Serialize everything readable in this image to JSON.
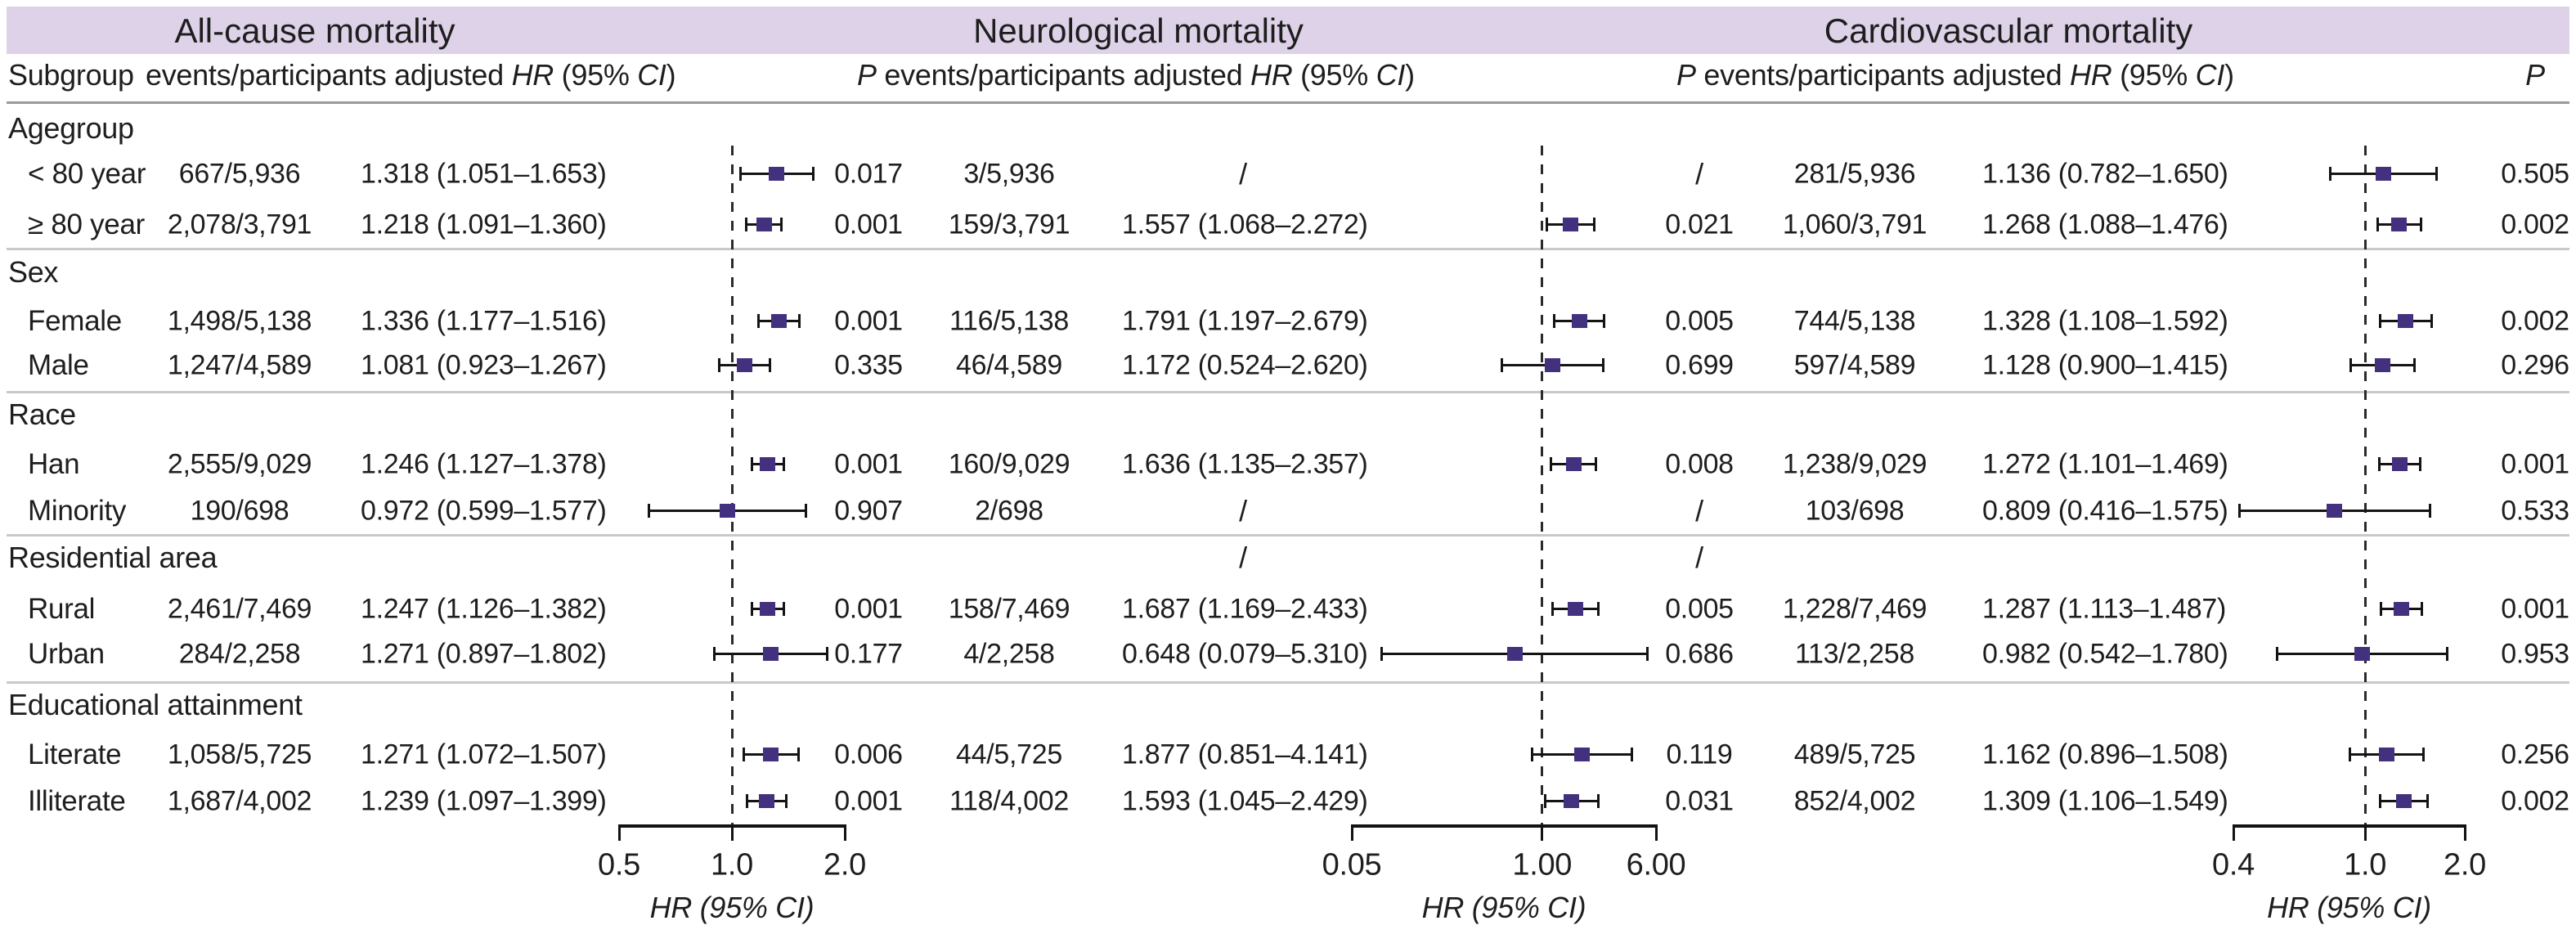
{
  "figure": {
    "band_color": "#ddd2e8",
    "marker_color": "#43307e",
    "section_titles": [
      "All-cause mortality",
      "Neurological mortality",
      "Cardiovascular mortality"
    ],
    "subheader": {
      "subgroup": "Subgroup",
      "p": "P",
      "events": "events/participants",
      "adjusted": "adjusted",
      "hr": "HR",
      "pct95": "95%",
      "ci": "CI"
    }
  },
  "chart_data": {
    "type": "forest",
    "outcomes": [
      {
        "title": "All-cause mortality",
        "axis": {
          "scale": "log",
          "min": 0.5,
          "max": 2.0,
          "ticks": [
            0.5,
            1.0,
            2.0
          ],
          "tick_labels": [
            "0.5",
            "1.0",
            "2.0"
          ],
          "ref_line": 1.0,
          "xlabel": "HR (95% CI)"
        }
      },
      {
        "title": "Neurological mortality",
        "axis": {
          "scale": "log",
          "min": 0.05,
          "max": 6.0,
          "ticks": [
            0.05,
            1.0,
            6.0
          ],
          "tick_labels": [
            "0.05",
            "1.00",
            "6.00"
          ],
          "ref_line": 1.0,
          "xlabel": "HR (95% CI)"
        }
      },
      {
        "title": "Cardiovascular mortality",
        "axis": {
          "scale": "log",
          "min": 0.4,
          "max": 2.0,
          "ticks": [
            0.4,
            1.0,
            2.0
          ],
          "tick_labels": [
            "0.4",
            "1.0",
            "2.0"
          ],
          "ref_line": 1.0,
          "xlabel": "HR (95% CI)"
        }
      }
    ],
    "groups": [
      {
        "label": "Agegroup",
        "rows": [
          {
            "label": "< 80 year",
            "cells": [
              {
                "events": "667/5,936",
                "hr_text": "1.318 (1.051–1.653)",
                "hr": 1.318,
                "lo": 1.051,
                "hi": 1.653,
                "p": "0.017"
              },
              {
                "events": "3/5,936",
                "hr_text": "/",
                "hr": null,
                "lo": null,
                "hi": null,
                "p": "/"
              },
              {
                "events": "281/5,936",
                "hr_text": "1.136 (0.782–1.650)",
                "hr": 1.136,
                "lo": 0.782,
                "hi": 1.65,
                "p": "0.505"
              }
            ]
          },
          {
            "label": "≥ 80 year",
            "cells": [
              {
                "events": "2,078/3,791",
                "hr_text": "1.218 (1.091–1.360)",
                "hr": 1.218,
                "lo": 1.091,
                "hi": 1.36,
                "p": "0.001"
              },
              {
                "events": "159/3,791",
                "hr_text": "1.557 (1.068–2.272)",
                "hr": 1.557,
                "lo": 1.068,
                "hi": 2.272,
                "p": "0.021"
              },
              {
                "events": "1,060/3,791",
                "hr_text": "1.268 (1.088–1.476)",
                "hr": 1.268,
                "lo": 1.088,
                "hi": 1.476,
                "p": "0.002"
              }
            ]
          }
        ]
      },
      {
        "label": "Sex",
        "rows": [
          {
            "label": "Female",
            "cells": [
              {
                "events": "1,498/5,138",
                "hr_text": "1.336 (1.177–1.516)",
                "hr": 1.336,
                "lo": 1.177,
                "hi": 1.516,
                "p": "0.001"
              },
              {
                "events": "116/5,138",
                "hr_text": "1.791 (1.197–2.679)",
                "hr": 1.791,
                "lo": 1.197,
                "hi": 2.679,
                "p": "0.005"
              },
              {
                "events": "744/5,138",
                "hr_text": "1.328 (1.108–1.592)",
                "hr": 1.328,
                "lo": 1.108,
                "hi": 1.592,
                "p": "0.002"
              }
            ]
          },
          {
            "label": "Male",
            "cells": [
              {
                "events": "1,247/4,589",
                "hr_text": "1.081 (0.923–1.267)",
                "hr": 1.081,
                "lo": 0.923,
                "hi": 1.267,
                "p": "0.335"
              },
              {
                "events": "46/4,589",
                "hr_text": "1.172 (0.524–2.620)",
                "hr": 1.172,
                "lo": 0.524,
                "hi": 2.62,
                "p": "0.699"
              },
              {
                "events": "597/4,589",
                "hr_text": "1.128 (0.900–1.415)",
                "hr": 1.128,
                "lo": 0.9,
                "hi": 1.415,
                "p": "0.296"
              }
            ]
          }
        ]
      },
      {
        "label": "Race",
        "rows": [
          {
            "label": "Han",
            "cells": [
              {
                "events": "2,555/9,029",
                "hr_text": "1.246 (1.127–1.378)",
                "hr": 1.246,
                "lo": 1.127,
                "hi": 1.378,
                "p": "0.001"
              },
              {
                "events": "160/9,029",
                "hr_text": "1.636 (1.135–2.357)",
                "hr": 1.636,
                "lo": 1.135,
                "hi": 2.357,
                "p": "0.008"
              },
              {
                "events": "1,238/9,029",
                "hr_text": "1.272 (1.101–1.469)",
                "hr": 1.272,
                "lo": 1.101,
                "hi": 1.469,
                "p": "0.001"
              }
            ]
          },
          {
            "label": "Minority",
            "cells": [
              {
                "events": "190/698",
                "hr_text": "0.972 (0.599–1.577)",
                "hr": 0.972,
                "lo": 0.599,
                "hi": 1.577,
                "p": "0.907"
              },
              {
                "events": "2/698",
                "hr_text": "/",
                "hr": null,
                "lo": null,
                "hi": null,
                "p": "/"
              },
              {
                "events": "103/698",
                "hr_text": "0.809 (0.416–1.575)",
                "hr": 0.809,
                "lo": 0.416,
                "hi": 1.575,
                "p": "0.533"
              }
            ]
          }
        ]
      },
      {
        "label": "Residential area",
        "label_row_cells": [
          null,
          {
            "hr_text": "/",
            "p": "/"
          },
          null
        ],
        "rows": [
          {
            "label": "Rural",
            "cells": [
              {
                "events": "2,461/7,469",
                "hr_text": "1.247 (1.126–1.382)",
                "hr": 1.247,
                "lo": 1.126,
                "hi": 1.382,
                "p": "0.001"
              },
              {
                "events": "158/7,469",
                "hr_text": "1.687 (1.169–2.433)",
                "hr": 1.687,
                "lo": 1.169,
                "hi": 2.433,
                "p": "0.005"
              },
              {
                "events": "1,228/7,469",
                "hr_text": "1.287 (1.113–1.487)",
                "hr": 1.287,
                "lo": 1.113,
                "hi": 1.487,
                "p": "0.001"
              }
            ]
          },
          {
            "label": "Urban",
            "cells": [
              {
                "events": "284/2,258",
                "hr_text": "1.271 (0.897–1.802)",
                "hr": 1.271,
                "lo": 0.897,
                "hi": 1.802,
                "p": "0.177"
              },
              {
                "events": "4/2,258",
                "hr_text": "0.648 (0.079–5.310)",
                "hr": 0.648,
                "lo": 0.079,
                "hi": 5.31,
                "p": "0.686"
              },
              {
                "events": "113/2,258",
                "hr_text": "0.982 (0.542–1.780)",
                "hr": 0.982,
                "lo": 0.542,
                "hi": 1.78,
                "p": "0.953"
              }
            ]
          }
        ]
      },
      {
        "label": "Educational attainment",
        "rows": [
          {
            "label": "Literate",
            "cells": [
              {
                "events": "1,058/5,725",
                "hr_text": "1.271 (1.072–1.507)",
                "hr": 1.271,
                "lo": 1.072,
                "hi": 1.507,
                "p": "0.006"
              },
              {
                "events": "44/5,725",
                "hr_text": "1.877 (0.851–4.141)",
                "hr": 1.877,
                "lo": 0.851,
                "hi": 4.141,
                "p": "0.119"
              },
              {
                "events": "489/5,725",
                "hr_text": "1.162 (0.896–1.508)",
                "hr": 1.162,
                "lo": 0.896,
                "hi": 1.508,
                "p": "0.256"
              }
            ]
          },
          {
            "label": "Illiterate",
            "cells": [
              {
                "events": "1,687/4,002",
                "hr_text": "1.239 (1.097–1.399)",
                "hr": 1.239,
                "lo": 1.097,
                "hi": 1.399,
                "p": "0.001"
              },
              {
                "events": "118/4,002",
                "hr_text": "1.593 (1.045–2.429)",
                "hr": 1.593,
                "lo": 1.045,
                "hi": 2.429,
                "p": "0.031"
              },
              {
                "events": "852/4,002",
                "hr_text": "1.309 (1.106–1.549)",
                "hr": 1.309,
                "lo": 1.106,
                "hi": 1.549,
                "p": "0.002"
              }
            ]
          }
        ]
      }
    ]
  }
}
